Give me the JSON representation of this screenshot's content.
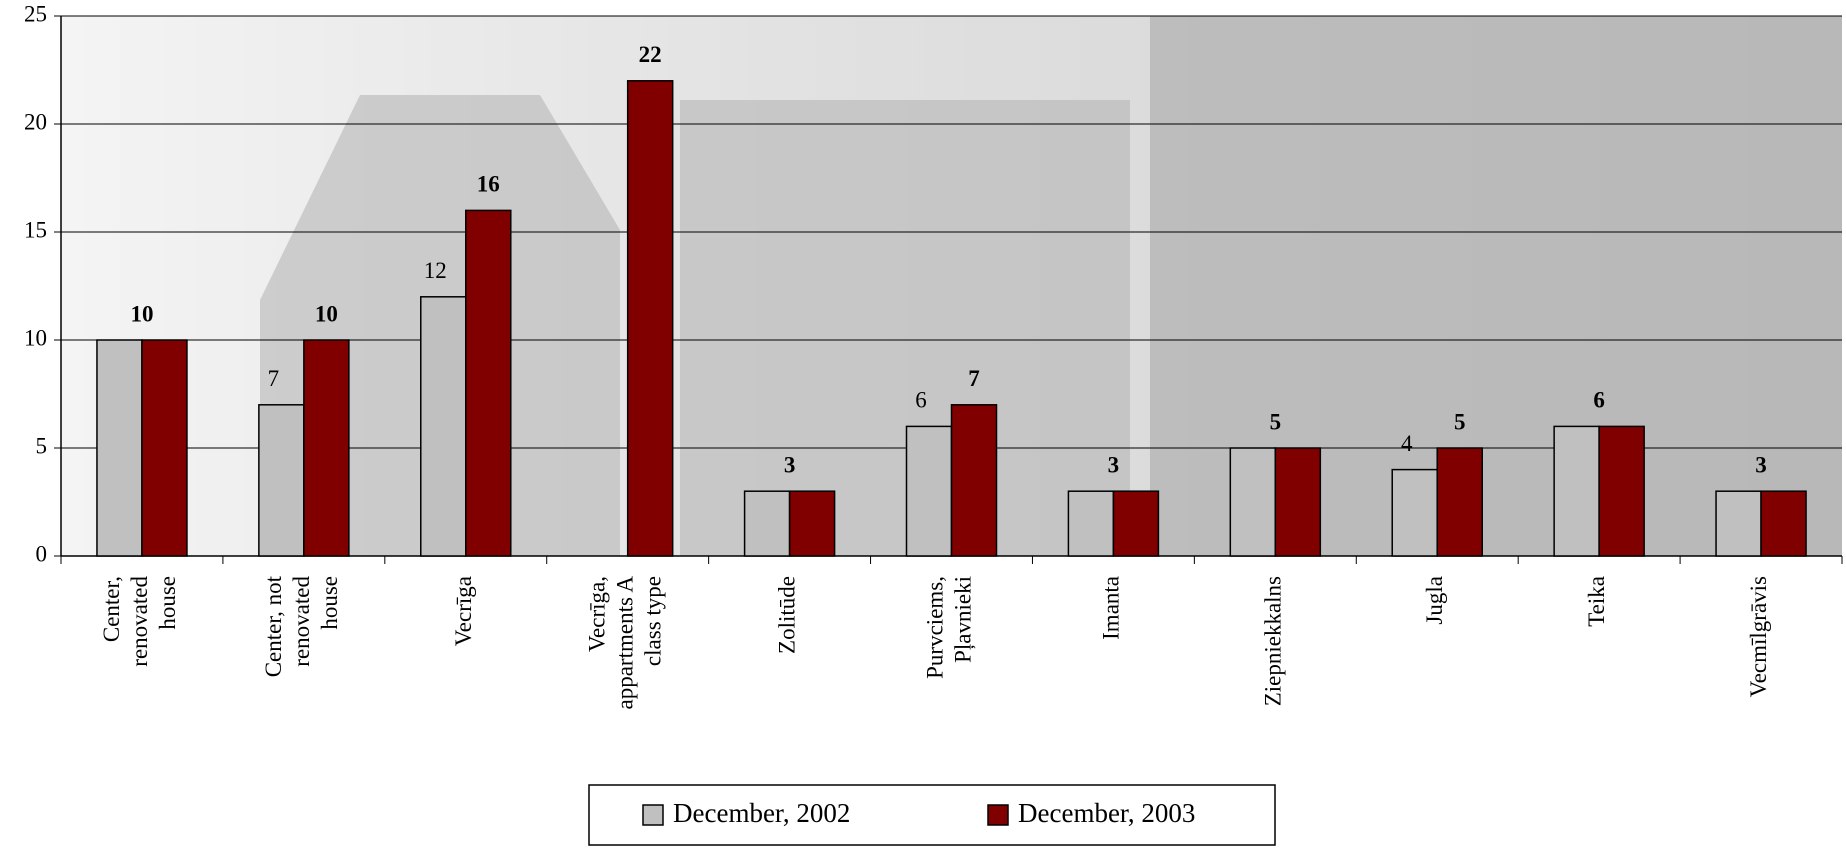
{
  "chart_data": {
    "type": "bar",
    "categories": [
      "Center, renovated house",
      "Center, not renovated house",
      "Vecrīga",
      "Vecrīga, appartments A class type",
      "Zolitūde",
      "Purvciems, Pļavnieki",
      "Imanta",
      "Ziepniekkalns",
      "Jugla",
      "Teika",
      "Vecmīlgrāvis"
    ],
    "series": [
      {
        "name": "December, 2002",
        "color": "#c0c0c0",
        "values": [
          10,
          7,
          12,
          null,
          3,
          6,
          3,
          5,
          4,
          6,
          3
        ]
      },
      {
        "name": "December, 2003",
        "color": "#800000",
        "values": [
          10,
          10,
          16,
          22,
          3,
          7,
          3,
          5,
          5,
          6,
          3
        ]
      }
    ],
    "ylim": [
      0,
      25
    ],
    "yticks": [
      0,
      5,
      10,
      15,
      20,
      25
    ],
    "grid": true
  }
}
